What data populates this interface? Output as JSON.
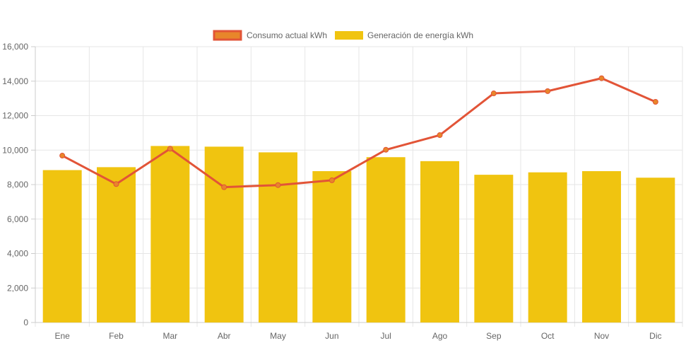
{
  "chart_data": {
    "type": "bar",
    "categories": [
      "Ene",
      "Feb",
      "Mar",
      "Abr",
      "May",
      "Jun",
      "Jul",
      "Ago",
      "Sep",
      "Oct",
      "Nov",
      "Dic"
    ],
    "series": [
      {
        "name": "Consumo actual kWh",
        "type": "line",
        "color": "#e25437",
        "point_color": "#e8862a",
        "values": [
          9680,
          8030,
          10080,
          7850,
          7970,
          8250,
          10020,
          10870,
          13290,
          13420,
          14170,
          12800
        ]
      },
      {
        "name": "Generación de energía kWh",
        "type": "bar",
        "color": "#f0c410",
        "values": [
          8840,
          9010,
          10240,
          10200,
          9870,
          8780,
          9590,
          9360,
          8570,
          8710,
          8780,
          8400
        ]
      }
    ],
    "title": "",
    "xlabel": "",
    "ylabel": "",
    "ylim": [
      0,
      16000
    ],
    "yticks": [
      "0",
      "2,000",
      "4,000",
      "6,000",
      "8,000",
      "10,000",
      "12,000",
      "14,000",
      "16,000"
    ],
    "grid": true,
    "legend_position": "top-center"
  }
}
